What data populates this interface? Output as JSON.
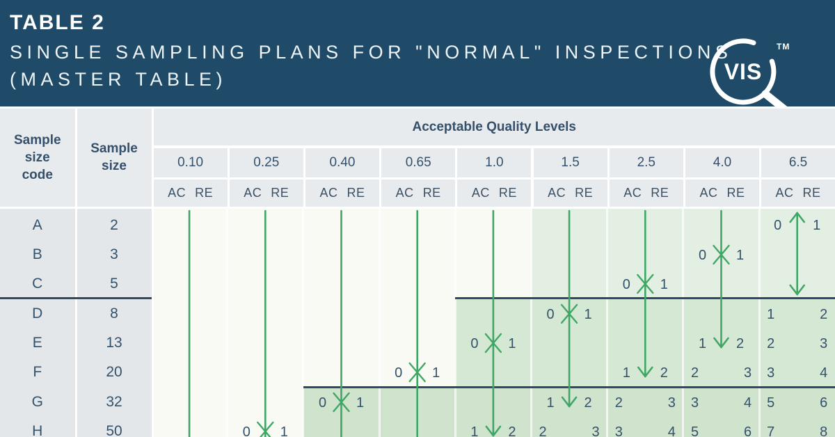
{
  "banner": {
    "table_label": "TABLE 2",
    "title_line1": "SINGLE SAMPLING PLANS FOR \"NORMAL\" INSPECTIONS",
    "title_line2": "(MASTER TABLE)",
    "logo": {
      "text": "VIS",
      "tm": "TM"
    }
  },
  "table": {
    "col_headers": {
      "sample_size_code": "Sample size code",
      "sample_size": "Sample size"
    },
    "aql_header": "Acceptable Quality Levels",
    "ac_label": "AC",
    "re_label": "RE",
    "aql_levels": [
      "0.10",
      "0.25",
      "0.40",
      "0.65",
      "1.0",
      "1.5",
      "2.5",
      "4.0",
      "6.5"
    ],
    "rows": [
      {
        "code": "A",
        "size": "2"
      },
      {
        "code": "B",
        "size": "3"
      },
      {
        "code": "C",
        "size": "5"
      },
      {
        "code": "D",
        "size": "8"
      },
      {
        "code": "E",
        "size": "13"
      },
      {
        "code": "F",
        "size": "20"
      },
      {
        "code": "G",
        "size": "32"
      },
      {
        "code": "H",
        "size": "50"
      }
    ]
  },
  "plan": {
    "columns": [
      {
        "label": "0.10"
      },
      {
        "label": "0.25",
        "x_mark": {
          "row": "H",
          "ac": "0",
          "re": "1"
        }
      },
      {
        "label": "0.40",
        "x_mark": {
          "row": "G",
          "ac": "0",
          "re": "1"
        }
      },
      {
        "label": "0.65",
        "x_mark": {
          "row": "F",
          "ac": "0",
          "re": "1"
        }
      },
      {
        "label": "1.0",
        "x_mark": {
          "row": "E",
          "ac": "0",
          "re": "1"
        },
        "arrow_end": {
          "row": "H",
          "ac": "1",
          "re": "2"
        }
      },
      {
        "label": "1.5",
        "x_mark": {
          "row": "D",
          "ac": "0",
          "re": "1"
        },
        "arrow_end": {
          "row": "G",
          "ac": "1",
          "re": "2"
        },
        "pairs": [
          {
            "row": "H",
            "ac": "2",
            "re": "3"
          }
        ]
      },
      {
        "label": "2.5",
        "x_mark": {
          "row": "C",
          "ac": "0",
          "re": "1"
        },
        "arrow_end": {
          "row": "F",
          "ac": "1",
          "re": "2"
        },
        "pairs": [
          {
            "row": "G",
            "ac": "2",
            "re": "3"
          },
          {
            "row": "H",
            "ac": "3",
            "re": "4"
          }
        ]
      },
      {
        "label": "4.0",
        "x_mark": {
          "row": "B",
          "ac": "0",
          "re": "1"
        },
        "arrow_end": {
          "row": "E",
          "ac": "1",
          "re": "2"
        },
        "pairs": [
          {
            "row": "F",
            "ac": "2",
            "re": "3"
          },
          {
            "row": "G",
            "ac": "3",
            "re": "4"
          },
          {
            "row": "H",
            "ac": "5",
            "re": "6"
          }
        ]
      },
      {
        "label": "6.5",
        "double_arrow": {
          "from_row": "A",
          "to_row": "C",
          "ac": "0",
          "re": "1"
        },
        "pairs": [
          {
            "row": "D",
            "ac": "1",
            "re": "2"
          },
          {
            "row": "E",
            "ac": "2",
            "re": "3"
          },
          {
            "row": "F",
            "ac": "3",
            "re": "4"
          },
          {
            "row": "G",
            "ac": "5",
            "re": "6"
          },
          {
            "row": "H",
            "ac": "7",
            "re": "8"
          }
        ]
      }
    ]
  },
  "colors": {
    "banner": "#1f4b68",
    "header_cell": "#e8ebee",
    "body_cell": "#e4e7ea",
    "body_bg": "#f8faf3",
    "green_zone_top": "#e3efe2",
    "green_zone_mid": "#d5e8d3",
    "green_zone_bottom": "#cfe3cd",
    "green_line": "#3fa666",
    "rule": "#2d4b67",
    "text": "#33516b"
  }
}
